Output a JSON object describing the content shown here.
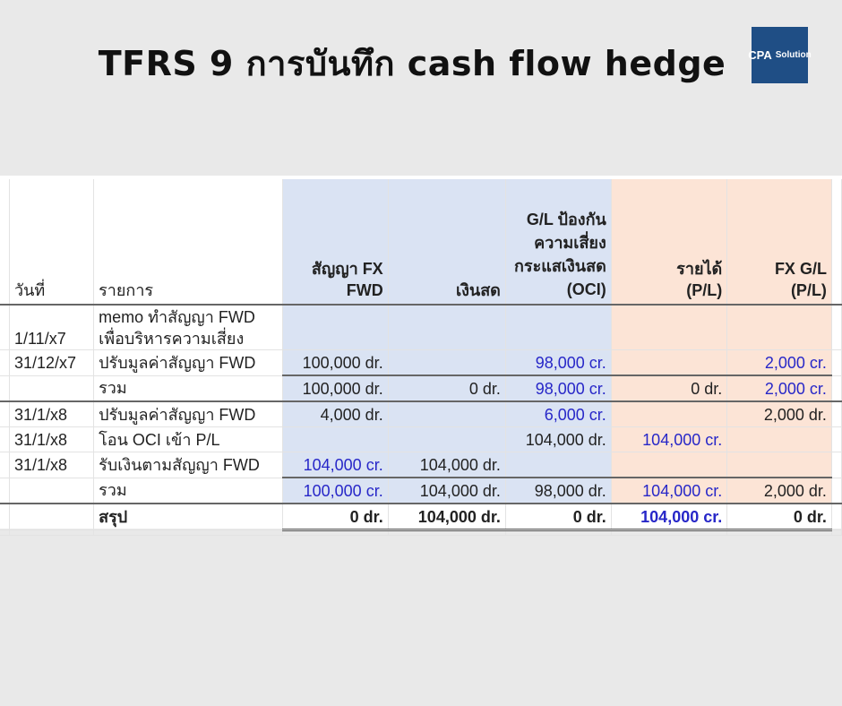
{
  "title": "TFRS 9 การบันทึก cash flow hedge",
  "logo": {
    "text_left": "CPA",
    "text_right": "Solution",
    "color": "#1f4e85"
  },
  "colors": {
    "blue_fill": "#dae3f3",
    "salmon_fill": "#fce4d6",
    "credit_text": "#2727c8"
  },
  "headers": {
    "date": "วันที่",
    "item": "รายการ",
    "fwd": "สัญญา FX FWD",
    "cash": "เงินสด",
    "oci": "G/L ป้องกันความเสี่ยงกระแสเงินสด (OCI)",
    "revenue": "รายได้ (P/L)",
    "fxgl": "FX G/L (P/L)"
  },
  "rows": [
    {
      "date": "1/11/x7",
      "item": "memo ทำสัญญา FWD เพื่อบริหารความเสี่ยง",
      "fwd": "",
      "cash": "",
      "oci": "",
      "revenue": "",
      "fxgl": ""
    },
    {
      "date": "31/12/x7",
      "item": "ปรับมูลค่าสัญญา FWD",
      "fwd": "100,000 dr.",
      "cash": "",
      "oci": "98,000 cr.",
      "revenue": "",
      "fxgl": "2,000 cr."
    },
    {
      "date": "",
      "item": "รวม",
      "fwd": "100,000 dr.",
      "cash": "0 dr.",
      "oci": "98,000 cr.",
      "revenue": "0 dr.",
      "fxgl": "2,000 cr."
    },
    {
      "date": "31/1/x8",
      "item": "ปรับมูลค่าสัญญา FWD",
      "fwd": "4,000 dr.",
      "cash": "",
      "oci": "6,000 cr.",
      "revenue": "",
      "fxgl": "2,000 dr."
    },
    {
      "date": "31/1/x8",
      "item": "โอน OCI เข้า P/L",
      "fwd": "",
      "cash": "",
      "oci": "104,000 dr.",
      "revenue": "104,000 cr.",
      "fxgl": ""
    },
    {
      "date": "31/1/x8",
      "item": "รับเงินตามสัญญา FWD",
      "fwd": "104,000 cr.",
      "cash": "104,000 dr.",
      "oci": "",
      "revenue": "",
      "fxgl": ""
    },
    {
      "date": "",
      "item": "รวม",
      "fwd": "100,000 cr.",
      "cash": "104,000 dr.",
      "oci": "98,000 dr.",
      "revenue": "104,000 cr.",
      "fxgl": "2,000 dr."
    },
    {
      "date": "",
      "item": "สรุป",
      "fwd": "0 dr.",
      "cash": "104,000 dr.",
      "oci": "0 dr.",
      "revenue": "104,000 cr.",
      "fxgl": "0 dr."
    }
  ]
}
